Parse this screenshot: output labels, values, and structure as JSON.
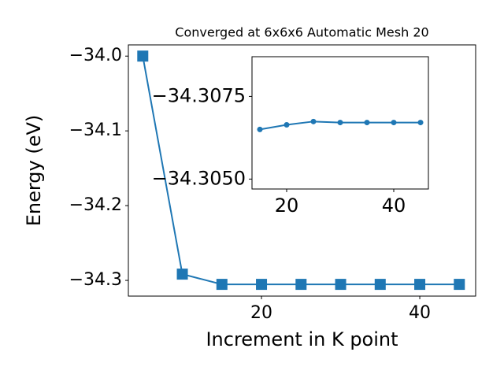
{
  "chart_data": [
    {
      "type": "line",
      "title": "Converged at 6x6x6 Automatic Mesh 20",
      "x_label": "Increment in K point",
      "y_label": "Energy (eV)",
      "x": [
        5,
        10,
        15,
        20,
        25,
        30,
        35,
        40,
        45
      ],
      "series": [
        {
          "color": "#1f77b4",
          "marker": "square",
          "values": [
            -34.0,
            -34.2916,
            -34.3053,
            -34.3053,
            -34.3053,
            -34.3053,
            -34.3053,
            -34.3053,
            -34.3053
          ]
        }
      ],
      "xlim": [
        3.18,
        47.06
      ],
      "ylim": [
        -34.321,
        -33.985
      ],
      "xticks": [
        20,
        40
      ],
      "yticks": [
        {
          "value": -34.0,
          "label": "−34.0"
        },
        {
          "value": -34.1,
          "label": "−34.1"
        },
        {
          "value": -34.2,
          "label": "−34.2"
        },
        {
          "value": -34.3,
          "label": "−34.3"
        }
      ]
    },
    {
      "type": "line",
      "x": [
        15,
        20,
        25,
        30,
        35,
        40,
        45
      ],
      "series": [
        {
          "color": "#1f77b4",
          "marker": "circle",
          "values": [
            -34.3065,
            -34.30664,
            -34.30674,
            -34.30671,
            -34.30671,
            -34.30671,
            -34.30671
          ]
        }
      ],
      "xlim": [
        13.53,
        46.47
      ],
      "ylim": [
        -34.3047,
        -34.3087
      ],
      "xticks": [
        20,
        40
      ],
      "yticks": [
        {
          "value": -34.3075,
          "label": "−34.3075"
        },
        {
          "value": -34.305,
          "label": "−34.3050"
        }
      ]
    }
  ]
}
